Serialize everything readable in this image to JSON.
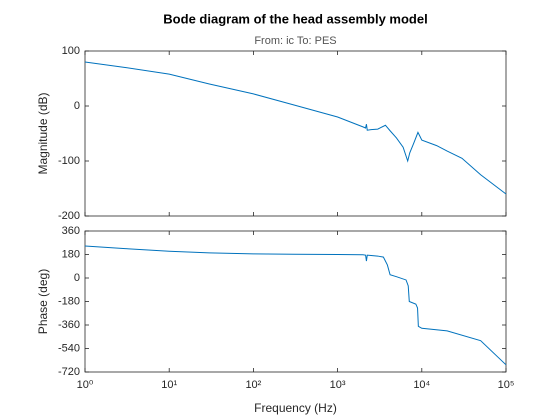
{
  "chart_data": [
    {
      "type": "line",
      "title": "Bode diagram of the head assembly model",
      "subtitle": "From: ic  To: PES",
      "ylabel": "Magnitude (dB)",
      "xscale": "log",
      "color": "#0072bd",
      "x": [
        1,
        3,
        10,
        30,
        100,
        300,
        1000,
        2000,
        2150,
        2200,
        2250,
        2500,
        3000,
        3700,
        4200,
        5000,
        6000,
        6800,
        7200,
        8000,
        9000,
        9500,
        10000,
        15000,
        20000,
        30000,
        50000,
        100000
      ],
      "values": [
        80,
        70,
        58,
        40,
        22,
        2,
        -20,
        -38,
        -40,
        -33,
        -44,
        -43,
        -42,
        -35,
        -45,
        -58,
        -75,
        -100,
        -85,
        -68,
        -48,
        -55,
        -62,
        -72,
        -82,
        -95,
        -125,
        -160
      ],
      "xlim": [
        1,
        100000
      ],
      "xticks": [
        1,
        10,
        100,
        1000,
        10000,
        100000
      ],
      "ylim": [
        -200,
        100
      ],
      "yticks": [
        -200,
        -100,
        0,
        100
      ]
    },
    {
      "type": "line",
      "ylabel": "Phase (deg)",
      "xlabel": "Frequency  (Hz)",
      "xscale": "log",
      "color": "#0072bd",
      "x": [
        1,
        3,
        10,
        30,
        100,
        300,
        1000,
        2000,
        2150,
        2200,
        2250,
        2500,
        3000,
        3500,
        3900,
        4200,
        5000,
        6500,
        6900,
        7100,
        8500,
        8900,
        9100,
        10000,
        20000,
        50000,
        100000
      ],
      "values": [
        245,
        225,
        205,
        192,
        185,
        182,
        180,
        178,
        175,
        130,
        175,
        172,
        168,
        160,
        100,
        25,
        10,
        -15,
        -60,
        -180,
        -200,
        -230,
        -370,
        -385,
        -405,
        -480,
        -665
      ],
      "xlim": [
        1,
        100000
      ],
      "xticks": [
        {
          "value": 1,
          "label": "10⁰"
        },
        {
          "value": 10,
          "label": "10¹"
        },
        {
          "value": 100,
          "label": "10²"
        },
        {
          "value": 1000,
          "label": "10³"
        },
        {
          "value": 10000,
          "label": "10⁴"
        },
        {
          "value": 100000,
          "label": "10⁵"
        }
      ],
      "ylim": [
        -720,
        360
      ],
      "yticks": [
        -720,
        -540,
        -360,
        -180,
        0,
        180,
        360
      ]
    }
  ]
}
